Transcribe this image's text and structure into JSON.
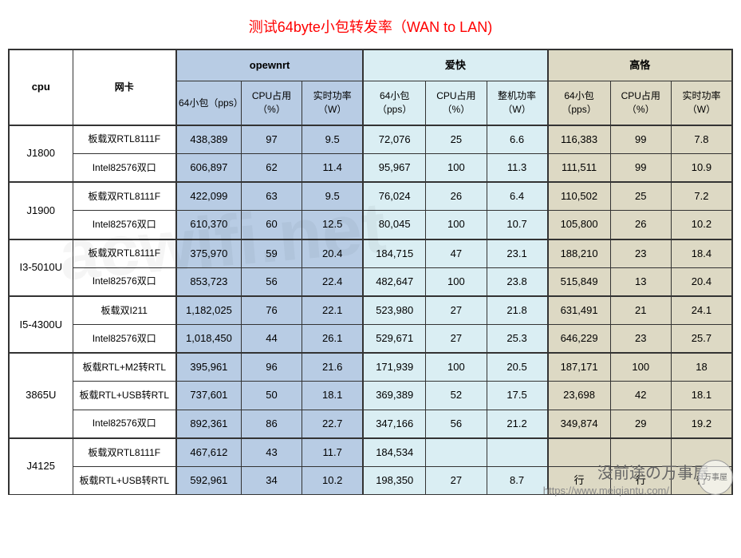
{
  "title_text": "测试64byte小包转发率（WAN to LAN)",
  "title_color": "#ff0000",
  "groups": {
    "g1": {
      "label": "opewnrt",
      "bg": "#b8cce4"
    },
    "g2": {
      "label": "爱快",
      "bg": "#daeef3"
    },
    "g3": {
      "label": "高恪",
      "bg": "#ddd9c4"
    }
  },
  "col_headers": {
    "cpu": "cpu",
    "nic": "网卡",
    "g1_pps": "64小包（pps）",
    "g1_cpu": "CPU占用（%）",
    "g1_pwr": "实时功率（W）",
    "g2_pps": "64小包（pps）",
    "g2_cpu": "CPU占用（%）",
    "g2_pwr": "整机功率（W）",
    "g3_pps": "64小包（pps）",
    "g3_cpu": "CPU占用（%）",
    "g3_pwr": "实时功率（W）"
  },
  "cpus": [
    {
      "name": "J1800",
      "rows": [
        {
          "nic": "板载双RTL8111F",
          "g1_pps": "438,389",
          "g1_cpu": "97",
          "g1_pwr": "9.5",
          "g2_pps": "72,076",
          "g2_cpu": "25",
          "g2_pwr": "6.6",
          "g3_pps": "116,383",
          "g3_cpu": "99",
          "g3_pwr": "7.8"
        },
        {
          "nic": "Intel82576双口",
          "g1_pps": "606,897",
          "g1_cpu": "62",
          "g1_pwr": "11.4",
          "g2_pps": "95,967",
          "g2_cpu": "100",
          "g2_pwr": "11.3",
          "g3_pps": "111,511",
          "g3_cpu": "99",
          "g3_pwr": "10.9"
        }
      ]
    },
    {
      "name": "J1900",
      "rows": [
        {
          "nic": "板载双RTL8111F",
          "g1_pps": "422,099",
          "g1_cpu": "63",
          "g1_pwr": "9.5",
          "g2_pps": "76,024",
          "g2_cpu": "26",
          "g2_pwr": "6.4",
          "g3_pps": "110,502",
          "g3_cpu": "25",
          "g3_pwr": "7.2"
        },
        {
          "nic": "Intel82576双口",
          "g1_pps": "610,370",
          "g1_cpu": "60",
          "g1_pwr": "12.5",
          "g2_pps": "80,045",
          "g2_cpu": "100",
          "g2_pwr": "10.7",
          "g3_pps": "105,800",
          "g3_cpu": "26",
          "g3_pwr": "10.2"
        }
      ]
    },
    {
      "name": "I3-5010U",
      "rows": [
        {
          "nic": "板载双RTL8111F",
          "g1_pps": "375,970",
          "g1_cpu": "59",
          "g1_pwr": "20.4",
          "g2_pps": "184,715",
          "g2_cpu": "47",
          "g2_pwr": "23.1",
          "g3_pps": "188,210",
          "g3_cpu": "23",
          "g3_pwr": "18.4"
        },
        {
          "nic": "Intel82576双口",
          "g1_pps": "853,723",
          "g1_cpu": "56",
          "g1_pwr": "22.4",
          "g2_pps": "482,647",
          "g2_cpu": "100",
          "g2_pwr": "23.8",
          "g3_pps": "515,849",
          "g3_cpu": "13",
          "g3_pwr": "20.4"
        }
      ]
    },
    {
      "name": "I5-4300U",
      "rows": [
        {
          "nic": "板载双I211",
          "g1_pps": "1,182,025",
          "g1_cpu": "76",
          "g1_pwr": "22.1",
          "g2_pps": "523,980",
          "g2_cpu": "27",
          "g2_pwr": "21.8",
          "g3_pps": "631,491",
          "g3_cpu": "21",
          "g3_pwr": "24.1"
        },
        {
          "nic": "Intel82576双口",
          "g1_pps": "1,018,450",
          "g1_cpu": "44",
          "g1_pwr": "26.1",
          "g2_pps": "529,671",
          "g2_cpu": "27",
          "g2_pwr": "25.3",
          "g3_pps": "646,229",
          "g3_cpu": "23",
          "g3_pwr": "25.7"
        }
      ]
    },
    {
      "name": "3865U",
      "rows": [
        {
          "nic": "板载RTL+M2转RTL",
          "g1_pps": "395,961",
          "g1_cpu": "96",
          "g1_pwr": "21.6",
          "g2_pps": "171,939",
          "g2_cpu": "100",
          "g2_pwr": "20.5",
          "g3_pps": "187,171",
          "g3_cpu": "100",
          "g3_pwr": "18"
        },
        {
          "nic": "板载RTL+USB转RTL",
          "g1_pps": "737,601",
          "g1_cpu": "50",
          "g1_pwr": "18.1",
          "g2_pps": "369,389",
          "g2_cpu": "52",
          "g2_pwr": "17.5",
          "g3_pps": "23,698",
          "g3_cpu": "42",
          "g3_pwr": "18.1"
        },
        {
          "nic": "Intel82576双口",
          "g1_pps": "892,361",
          "g1_cpu": "86",
          "g1_pwr": "22.7",
          "g2_pps": "347,166",
          "g2_cpu": "56",
          "g2_pwr": "21.2",
          "g3_pps": "349,874",
          "g3_cpu": "29",
          "g3_pwr": "19.2"
        }
      ]
    },
    {
      "name": "J4125",
      "rows": [
        {
          "nic": "板载双RTL8111F",
          "g1_pps": "467,612",
          "g1_cpu": "43",
          "g1_pwr": "11.7",
          "g2_pps": "184,534",
          "g2_cpu": "",
          "g2_pwr": "",
          "g3_pps": "",
          "g3_cpu": "",
          "g3_pwr": ""
        },
        {
          "nic": "板载RTL+USB转RTL",
          "g1_pps": "592,961",
          "g1_cpu": "34",
          "g1_pwr": "10.2",
          "g2_pps": "198,350",
          "g2_cpu": "27",
          "g2_pwr": "8.7",
          "g3_pps": "行",
          "g3_cpu": "行",
          "g3_pwr": "行"
        }
      ]
    }
  ],
  "watermark_bg": "acwifi.net",
  "footer_text": "没前途の万事屋",
  "footer_url": "https://www.meiqiantu.com/",
  "footer_circle": "万事屋"
}
